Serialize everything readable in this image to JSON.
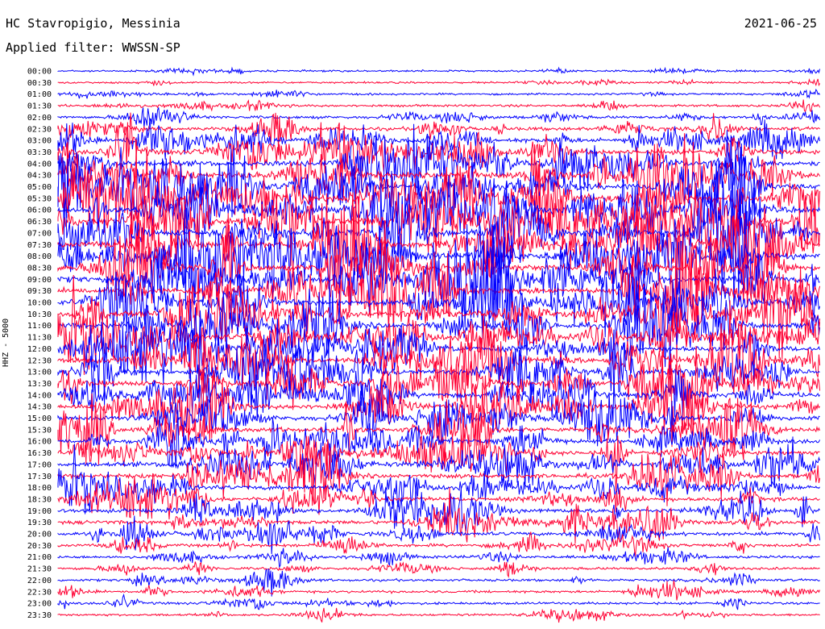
{
  "header": {
    "station": "HC Stavropigio, Messinia",
    "filter": "Applied filter: WWSSN-SP",
    "date": "2021-06-25",
    "channel": "HHZ - 5000"
  },
  "colors": {
    "trace_a": "#0000ff",
    "trace_b": "#ff0033"
  },
  "chart_data": {
    "type": "line",
    "title": "HC Stavropigio, Messinia",
    "subtitle": "Applied filter: WWSSN-SP",
    "date": "2021-06-25",
    "ylabel": "HHZ - 5000",
    "y_ticks": [
      "00:00",
      "00:30",
      "01:00",
      "01:30",
      "02:00",
      "02:30",
      "03:00",
      "03:30",
      "04:00",
      "04:30",
      "05:00",
      "05:30",
      "06:00",
      "06:30",
      "07:00",
      "07:30",
      "08:00",
      "08:30",
      "09:00",
      "09:30",
      "10:00",
      "10:30",
      "11:00",
      "11:30",
      "12:00",
      "12:30",
      "13:00",
      "13:30",
      "14:00",
      "14:30",
      "15:00",
      "15:30",
      "16:00",
      "16:30",
      "17:00",
      "17:30",
      "18:00",
      "18:30",
      "19:00",
      "19:30",
      "20:00",
      "20:30",
      "21:00",
      "21:30",
      "22:00",
      "22:30",
      "23:00",
      "23:30"
    ],
    "line_colors": [
      "#0000ff",
      "#ff0033"
    ],
    "relative_activity": [
      0.15,
      0.15,
      0.2,
      0.3,
      0.5,
      0.7,
      1.0,
      1.2,
      1.3,
      1.4,
      1.5,
      1.6,
      1.6,
      1.7,
      1.7,
      1.7,
      1.6,
      1.6,
      1.6,
      1.6,
      1.5,
      1.5,
      1.5,
      1.4,
      1.4,
      1.4,
      1.3,
      1.3,
      1.3,
      1.2,
      1.2,
      1.2,
      1.1,
      1.1,
      1.1,
      1.0,
      1.0,
      0.9,
      0.9,
      0.8,
      0.7,
      0.6,
      0.45,
      0.4,
      0.35,
      0.35,
      0.35,
      0.3
    ],
    "grid": false
  }
}
